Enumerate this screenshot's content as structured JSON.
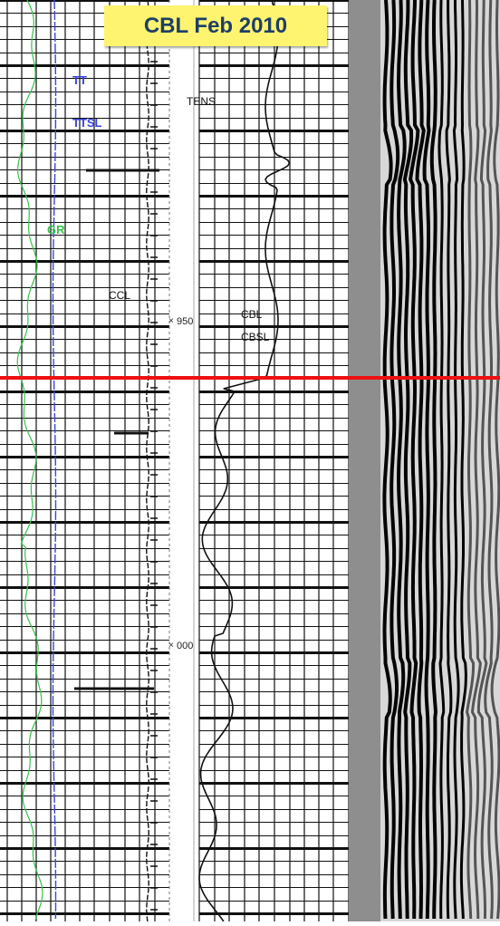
{
  "title": "CBL Feb 2010",
  "track_labels": {
    "tt": "TT",
    "ttsl": "TTSL",
    "gr": "GR",
    "tens": "TENS",
    "ccl": "CCL",
    "cbl": "CBL",
    "cbsl": "CBSL"
  },
  "depth_labels": [
    "950",
    "000"
  ],
  "colors": {
    "title_bg": "#fef470",
    "title_text": "#1f3e66",
    "marker_line": "#ee1111",
    "green_curve": "#36c24a",
    "blue_curve": "#3a44dd",
    "vdl_bg": "#8e8e8e"
  }
}
